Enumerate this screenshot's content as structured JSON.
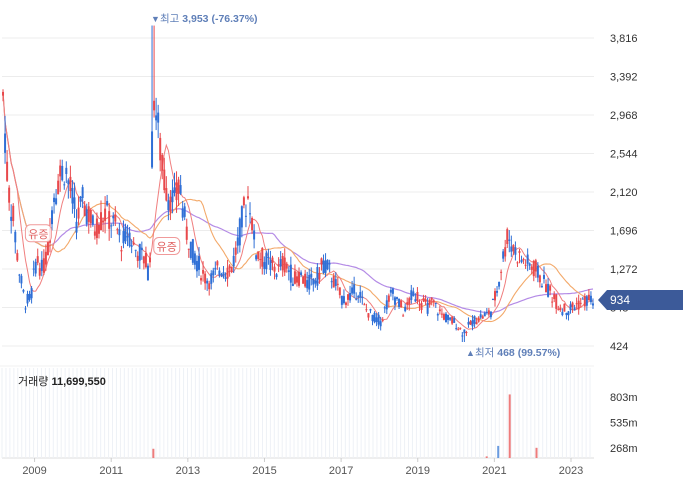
{
  "chart_data": {
    "type": "candlestick",
    "price_axis_ticks": [
      "3,816",
      "3,392",
      "2,968",
      "2,544",
      "2,120",
      "1,696",
      "1,272",
      "848",
      "424"
    ],
    "price_axis_values": [
      3816,
      3392,
      2968,
      2544,
      2120,
      1696,
      1272,
      848,
      424
    ],
    "volume_axis_ticks": [
      "803m",
      "535m",
      "268m"
    ],
    "volume_axis_values": [
      803,
      535,
      268
    ],
    "x_ticks": [
      "2009",
      "2011",
      "2013",
      "2015",
      "2017",
      "2019",
      "2021",
      "2023"
    ],
    "x_tick_years": [
      2009,
      2011,
      2013,
      2015,
      2017,
      2019,
      2021,
      2023
    ],
    "x_range": [
      2008.15,
      2023.6
    ],
    "current_price": "934",
    "high_label": "최고",
    "high_value": "3,953",
    "high_change": "(-76.37%)",
    "high_year": 2012.1,
    "low_label": "최저",
    "low_value": "468",
    "low_change": "(99.57%)",
    "low_year": 2020.2,
    "volume_label": "거래량",
    "volume_value": "11,699,550",
    "events": [
      {
        "label": "유증",
        "year": 2009.1,
        "price": 1660
      },
      {
        "label": "유증",
        "year": 2012.45,
        "price": 1520
      }
    ],
    "colors": {
      "up": "#e8484b",
      "down": "#2f6fd6",
      "ma_short": "#f07e7e",
      "ma_mid": "#f3a96a",
      "ma_long": "#b48be6",
      "ma_green": "#4fb96c",
      "badge": "#3c5a99",
      "grid": "#ececec",
      "axis_text": "#333333",
      "annot_text": "#5f7fb8"
    },
    "price_series": [
      [
        2008.15,
        3400
      ],
      [
        2008.3,
        2200
      ],
      [
        2008.45,
        1800
      ],
      [
        2008.6,
        1250
      ],
      [
        2008.75,
        900
      ],
      [
        2008.9,
        950
      ],
      [
        2009.05,
        1400
      ],
      [
        2009.2,
        1250
      ],
      [
        2009.35,
        1500
      ],
      [
        2009.5,
        2100
      ],
      [
        2009.65,
        2300
      ],
      [
        2009.8,
        2400
      ],
      [
        2009.95,
        2100
      ],
      [
        2010.1,
        1800
      ],
      [
        2010.25,
        2000
      ],
      [
        2010.4,
        1900
      ],
      [
        2010.55,
        1700
      ],
      [
        2010.7,
        1800
      ],
      [
        2010.85,
        1900
      ],
      [
        2011.0,
        1800
      ],
      [
        2011.15,
        1700
      ],
      [
        2011.3,
        1550
      ],
      [
        2011.45,
        1700
      ],
      [
        2011.6,
        1500
      ],
      [
        2011.75,
        1450
      ],
      [
        2011.9,
        1350
      ],
      [
        2012.0,
        1200
      ],
      [
        2012.1,
        3300
      ],
      [
        2012.2,
        2900
      ],
      [
        2012.35,
        2300
      ],
      [
        2012.5,
        2100
      ],
      [
        2012.65,
        2000
      ],
      [
        2012.8,
        2200
      ],
      [
        2012.95,
        1700
      ],
      [
        2013.1,
        1500
      ],
      [
        2013.25,
        1350
      ],
      [
        2013.4,
        1200
      ],
      [
        2013.55,
        1150
      ],
      [
        2013.7,
        1200
      ],
      [
        2013.85,
        1300
      ],
      [
        2014.0,
        1250
      ],
      [
        2014.15,
        1300
      ],
      [
        2014.3,
        1550
      ],
      [
        2014.45,
        1900
      ],
      [
        2014.6,
        2100
      ],
      [
        2014.75,
        1500
      ],
      [
        2014.9,
        1400
      ],
      [
        2015.05,
        1350
      ],
      [
        2015.2,
        1300
      ],
      [
        2015.35,
        1250
      ],
      [
        2015.5,
        1350
      ],
      [
        2015.65,
        1250
      ],
      [
        2015.8,
        1150
      ],
      [
        2015.95,
        1200
      ],
      [
        2016.1,
        1100
      ],
      [
        2016.25,
        1150
      ],
      [
        2016.4,
        1200
      ],
      [
        2016.55,
        1350
      ],
      [
        2016.7,
        1250
      ],
      [
        2016.85,
        1100
      ],
      [
        2017.0,
        950
      ],
      [
        2017.15,
        950
      ],
      [
        2017.3,
        1000
      ],
      [
        2017.45,
        1050
      ],
      [
        2017.6,
        850
      ],
      [
        2017.75,
        780
      ],
      [
        2017.9,
        720
      ],
      [
        2018.05,
        700
      ],
      [
        2018.2,
        900
      ],
      [
        2018.35,
        1000
      ],
      [
        2018.5,
        900
      ],
      [
        2018.65,
        780
      ],
      [
        2018.8,
        950
      ],
      [
        2018.95,
        1000
      ],
      [
        2019.1,
        900
      ],
      [
        2019.25,
        850
      ],
      [
        2019.4,
        900
      ],
      [
        2019.55,
        800
      ],
      [
        2019.7,
        750
      ],
      [
        2019.85,
        700
      ],
      [
        2020.0,
        680
      ],
      [
        2020.15,
        580
      ],
      [
        2020.3,
        620
      ],
      [
        2020.45,
        700
      ],
      [
        2020.6,
        740
      ],
      [
        2020.75,
        760
      ],
      [
        2020.9,
        800
      ],
      [
        2021.05,
        1000
      ],
      [
        2021.2,
        1350
      ],
      [
        2021.35,
        1650
      ],
      [
        2021.5,
        1500
      ],
      [
        2021.65,
        1400
      ],
      [
        2021.8,
        1350
      ],
      [
        2021.95,
        1300
      ],
      [
        2022.1,
        1250
      ],
      [
        2022.25,
        1150
      ],
      [
        2022.4,
        1050
      ],
      [
        2022.55,
        950
      ],
      [
        2022.7,
        860
      ],
      [
        2022.85,
        820
      ],
      [
        2023.0,
        840
      ],
      [
        2023.15,
        880
      ],
      [
        2023.3,
        900
      ],
      [
        2023.45,
        934
      ]
    ],
    "volume_spikes": [
      [
        2009.3,
        60
      ],
      [
        2009.8,
        95
      ],
      [
        2010.2,
        40
      ],
      [
        2010.6,
        30
      ],
      [
        2011.3,
        45
      ],
      [
        2011.6,
        20
      ],
      [
        2012.1,
        260
      ],
      [
        2012.4,
        110
      ],
      [
        2012.8,
        60
      ],
      [
        2013.4,
        25
      ],
      [
        2014.5,
        55
      ],
      [
        2015.2,
        20
      ],
      [
        2016.6,
        30
      ],
      [
        2018.3,
        25
      ],
      [
        2019.3,
        20
      ],
      [
        2020.3,
        45
      ],
      [
        2020.8,
        180
      ],
      [
        2021.1,
        290
      ],
      [
        2021.4,
        830
      ],
      [
        2021.7,
        140
      ],
      [
        2022.1,
        270
      ],
      [
        2022.6,
        40
      ],
      [
        2023.2,
        30
      ]
    ]
  }
}
